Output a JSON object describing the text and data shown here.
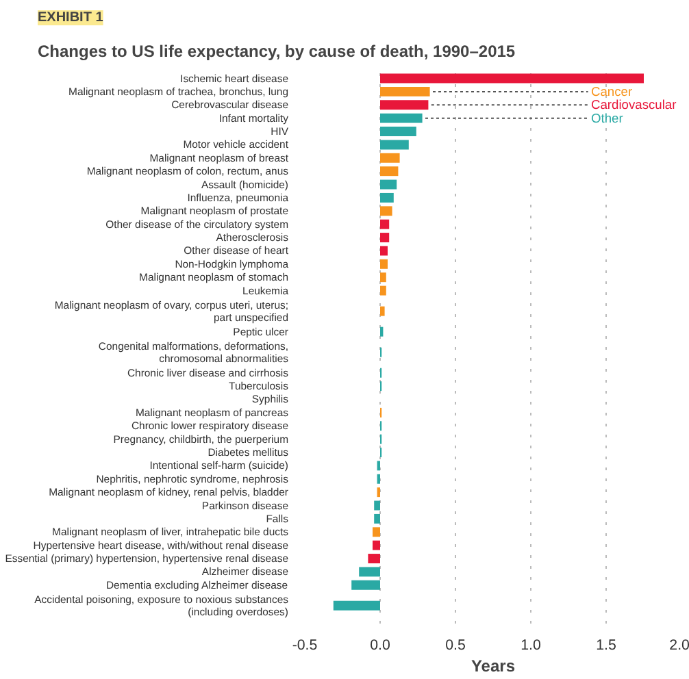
{
  "chart_data": {
    "type": "bar",
    "orientation": "horizontal",
    "title": "Changes to US life expectancy, by cause of death, 1990–2015",
    "annotations": [
      "EXHIBIT 1"
    ],
    "xlabel": "Years",
    "categories": [
      "Ischemic heart disease",
      "Malignant neoplasm of trachea, bronchus, lung",
      "Cerebrovascular disease",
      "Infant mortality",
      "HIV",
      "Motor vehicle accident",
      "Malignant neoplasm of breast",
      "Malignant neoplasm of colon, rectum, anus",
      "Assault (homicide)",
      "Influenza, pneumonia",
      "Malignant neoplasm of prostate",
      "Other disease of the circulatory system",
      "Atherosclerosis",
      "Other disease of heart",
      "Non-Hodgkin lymphoma",
      "Malignant neoplasm of stomach",
      "Leukemia",
      "Malignant neoplasm of ovary, corpus uteri, uterus;\npart unspecified",
      "Peptic ulcer",
      "Congenital malformations, deformations,\nchromosomal abnormalities",
      "Chronic liver disease and cirrhosis",
      "Tuberculosis",
      "Syphilis",
      "Malignant neoplasm of pancreas",
      "Chronic lower respiratory disease",
      "Pregnancy, childbirth, the puerperium",
      "Diabetes mellitus",
      "Intentional self-harm (suicide)",
      "Nephritis, nephrotic syndrome, nephrosis",
      "Malignant neoplasm of kidney, renal pelvis, bladder",
      "Parkinson disease",
      "Falls",
      "Malignant neoplasm of liver, intrahepatic bile ducts",
      "Hypertensive heart disease, with/without renal disease",
      "Essential (primary) hypertension, hypertensive renal disease",
      "Alzheimer disease",
      "Dementia excluding Alzheimer disease",
      "Accidental poisoning, exposure to noxious substances\n(including overdoses)"
    ],
    "series": [
      {
        "name": "Cancer",
        "color": "#f7941d",
        "values": [
          null,
          0.33,
          null,
          null,
          null,
          null,
          0.13,
          0.12,
          null,
          null,
          0.08,
          null,
          null,
          null,
          0.05,
          0.04,
          0.04,
          0.03,
          null,
          null,
          null,
          null,
          null,
          0.01,
          null,
          null,
          null,
          null,
          null,
          -0.02,
          null,
          null,
          -0.05,
          null,
          null,
          null,
          null,
          null
        ]
      },
      {
        "name": "Cardiovascular",
        "color": "#e8173a",
        "values": [
          1.75,
          null,
          0.32,
          null,
          null,
          null,
          null,
          null,
          null,
          null,
          null,
          0.06,
          0.06,
          0.05,
          null,
          null,
          null,
          null,
          null,
          null,
          null,
          null,
          null,
          null,
          null,
          null,
          null,
          null,
          null,
          null,
          null,
          null,
          null,
          -0.05,
          -0.08,
          null,
          null,
          null
        ]
      },
      {
        "name": "Other",
        "color": "#2aa9a4",
        "values": [
          null,
          null,
          null,
          0.28,
          0.24,
          0.19,
          null,
          null,
          0.11,
          0.09,
          null,
          null,
          null,
          null,
          null,
          null,
          null,
          null,
          0.02,
          0.01,
          0.01,
          0.01,
          0.0,
          null,
          0.01,
          0.01,
          0.01,
          -0.02,
          -0.02,
          null,
          -0.04,
          -0.04,
          null,
          null,
          null,
          -0.14,
          -0.19,
          -0.31
        ]
      }
    ],
    "xlim": [
      -0.5,
      2.0
    ],
    "xticks": [
      {
        "value": -0.5,
        "label": "-0.5"
      },
      {
        "value": 0,
        "label": "0.0"
      },
      {
        "value": 0.5,
        "label": "0.5"
      },
      {
        "value": 1.0,
        "label": "1.0"
      },
      {
        "value": 1.5,
        "label": "1.5"
      },
      {
        "value": 2.0,
        "label": "2.0"
      }
    ],
    "grid": "x",
    "legend": false
  }
}
